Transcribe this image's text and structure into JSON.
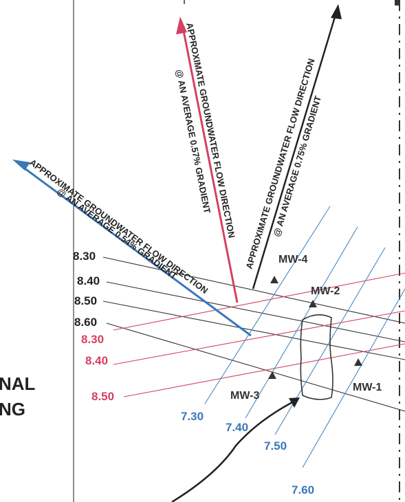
{
  "legend_fragment": [
    "NAL",
    "NG"
  ],
  "contour_labels": {
    "black": [
      "8.30",
      "8.40",
      "8.50",
      "8.60"
    ],
    "red": [
      "8.30",
      "8.40",
      "8.50"
    ],
    "blue": [
      "7.30",
      "7.40",
      "7.50",
      "7.60"
    ]
  },
  "wells": [
    "MW-1",
    "MW-2",
    "MW-3",
    "MW-4"
  ],
  "flow_arrows": {
    "blue": {
      "line1": "APPROXIMATE GROUNDWATER FLOW DIRECTION",
      "line2": "@ AN AVERAGE 0.54% GRADIENT"
    },
    "red": {
      "line1": "APPROXIMATE GROUNDWATER FLOW DIRECTION",
      "line2": "@ AN AVERAGE 0.57% GRADIENT"
    },
    "black": {
      "line1": "APPROXIMATE GROUNDWATER FLOW DIRECTION",
      "line2": "@ AN AVERAGE 0.75% GRADIENT"
    }
  },
  "colors": {
    "black_contours": "#333333",
    "red_contours": "#d64060",
    "blue_contours": "#4a86c0"
  }
}
